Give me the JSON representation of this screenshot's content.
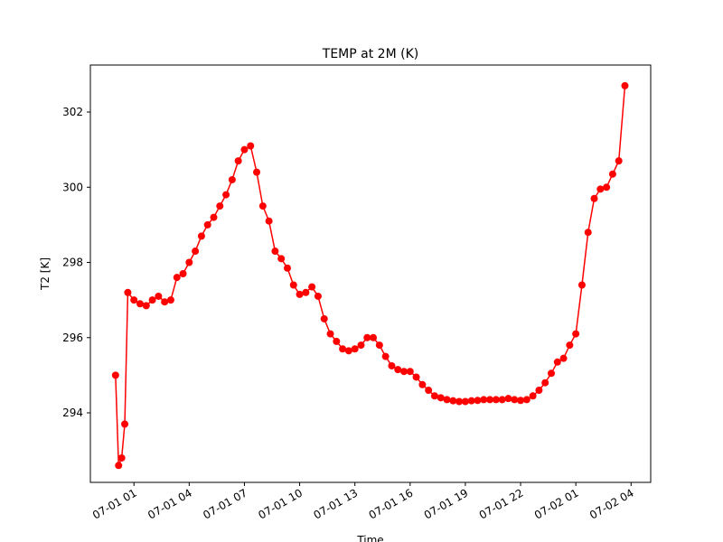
{
  "chart_data": {
    "type": "line",
    "title": "TEMP at 2M (K)",
    "x_label": "Time",
    "y_label": "T2 [K]",
    "x": [
      "07-01 00:00",
      "07-01 00:10",
      "07-01 00:20",
      "07-01 00:30",
      "07-01 00:40",
      "07-01 01:00",
      "07-01 01:20",
      "07-01 01:40",
      "07-01 02:00",
      "07-01 02:20",
      "07-01 02:40",
      "07-01 03:00",
      "07-01 03:20",
      "07-01 03:40",
      "07-01 04:00",
      "07-01 04:20",
      "07-01 04:40",
      "07-01 05:00",
      "07-01 05:20",
      "07-01 05:40",
      "07-01 06:00",
      "07-01 06:20",
      "07-01 06:40",
      "07-01 07:00",
      "07-01 07:20",
      "07-01 07:40",
      "07-01 08:00",
      "07-01 08:20",
      "07-01 08:40",
      "07-01 09:00",
      "07-01 09:20",
      "07-01 09:40",
      "07-01 10:00",
      "07-01 10:20",
      "07-01 10:40",
      "07-01 11:00",
      "07-01 11:20",
      "07-01 11:40",
      "07-01 12:00",
      "07-01 12:20",
      "07-01 12:40",
      "07-01 13:00",
      "07-01 13:20",
      "07-01 13:40",
      "07-01 14:00",
      "07-01 14:20",
      "07-01 14:40",
      "07-01 15:00",
      "07-01 15:20",
      "07-01 15:40",
      "07-01 16:00",
      "07-01 16:20",
      "07-01 16:40",
      "07-01 17:00",
      "07-01 17:20",
      "07-01 17:40",
      "07-01 18:00",
      "07-01 18:20",
      "07-01 18:40",
      "07-01 19:00",
      "07-01 19:20",
      "07-01 19:40",
      "07-01 20:00",
      "07-01 20:20",
      "07-01 20:40",
      "07-01 21:00",
      "07-01 21:20",
      "07-01 21:40",
      "07-01 22:00",
      "07-01 22:20",
      "07-01 22:40",
      "07-01 23:00",
      "07-01 23:20",
      "07-01 23:40",
      "07-02 00:00",
      "07-02 00:20",
      "07-02 00:40",
      "07-02 01:00",
      "07-02 01:20",
      "07-02 01:40",
      "07-02 02:00",
      "07-02 02:20",
      "07-02 02:40",
      "07-02 03:00",
      "07-02 03:20",
      "07-02 03:40"
    ],
    "series": [
      {
        "name": "T2",
        "color": "#ff0000",
        "values": [
          295.0,
          292.6,
          292.8,
          293.7,
          297.2,
          297.0,
          296.9,
          296.85,
          297.0,
          297.1,
          296.95,
          297.0,
          297.6,
          297.7,
          298.0,
          298.3,
          298.7,
          299.0,
          299.2,
          299.5,
          299.8,
          300.2,
          300.7,
          301.0,
          301.1,
          300.4,
          299.5,
          299.1,
          298.3,
          298.1,
          297.85,
          297.4,
          297.15,
          297.2,
          297.35,
          297.1,
          296.5,
          296.1,
          295.9,
          295.7,
          295.65,
          295.7,
          295.8,
          296.0,
          296.0,
          295.8,
          295.5,
          295.25,
          295.15,
          295.1,
          295.1,
          294.95,
          294.75,
          294.6,
          294.45,
          294.4,
          294.35,
          294.32,
          294.3,
          294.3,
          294.32,
          294.33,
          294.35,
          294.35,
          294.35,
          294.35,
          294.38,
          294.35,
          294.33,
          294.35,
          294.45,
          294.6,
          294.8,
          295.05,
          295.35,
          295.45,
          295.8,
          296.1,
          297.4,
          298.8,
          299.7,
          299.95,
          300.0,
          300.35,
          300.7,
          302.7
        ]
      }
    ],
    "xlim": [
      "06-30 22:38",
      "07-02 05:04"
    ],
    "xticks": [
      "07-01 01",
      "07-01 04",
      "07-01 07",
      "07-01 10",
      "07-01 13",
      "07-01 16",
      "07-01 19",
      "07-01 22",
      "07-02 01",
      "07-02 04"
    ],
    "ylim": [
      292.15,
      303.25
    ],
    "yticks": [
      294,
      296,
      298,
      300,
      302
    ]
  }
}
